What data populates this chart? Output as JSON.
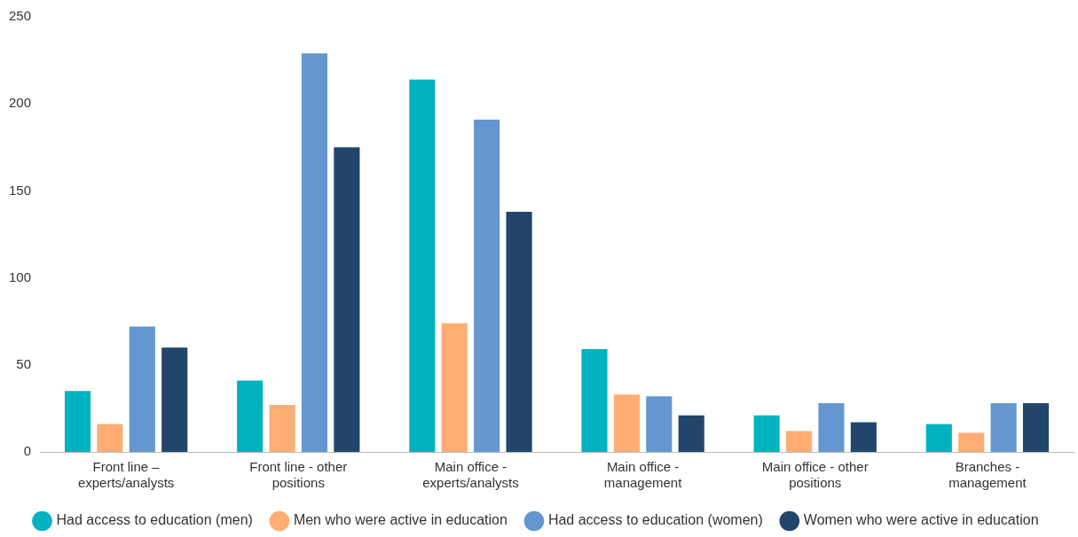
{
  "chart_data": {
    "type": "bar",
    "categories": [
      "Front line – experts/analysts",
      "Front line - other positions",
      "Main office - experts/analysts",
      "Main office - management",
      "Main office - other positions",
      "Branches - management"
    ],
    "series": [
      {
        "name": "Had access to education (men)",
        "color": "#00b2c0",
        "values": [
          35,
          41,
          214,
          59,
          21,
          16
        ]
      },
      {
        "name": "Men who were active in education",
        "color": "#ffad72",
        "values": [
          16,
          27,
          74,
          33,
          12,
          11
        ]
      },
      {
        "name": "Had access to education (women)",
        "color": "#6497d0",
        "values": [
          72,
          229,
          191,
          32,
          28,
          28
        ]
      },
      {
        "name": "Women who were active in education",
        "color": "#22466b",
        "values": [
          60,
          175,
          138,
          21,
          17,
          28
        ]
      }
    ],
    "ylim": [
      0,
      250
    ],
    "yticks": [
      0,
      50,
      100,
      150,
      200,
      250
    ],
    "grid": false,
    "legend": "bottom"
  }
}
